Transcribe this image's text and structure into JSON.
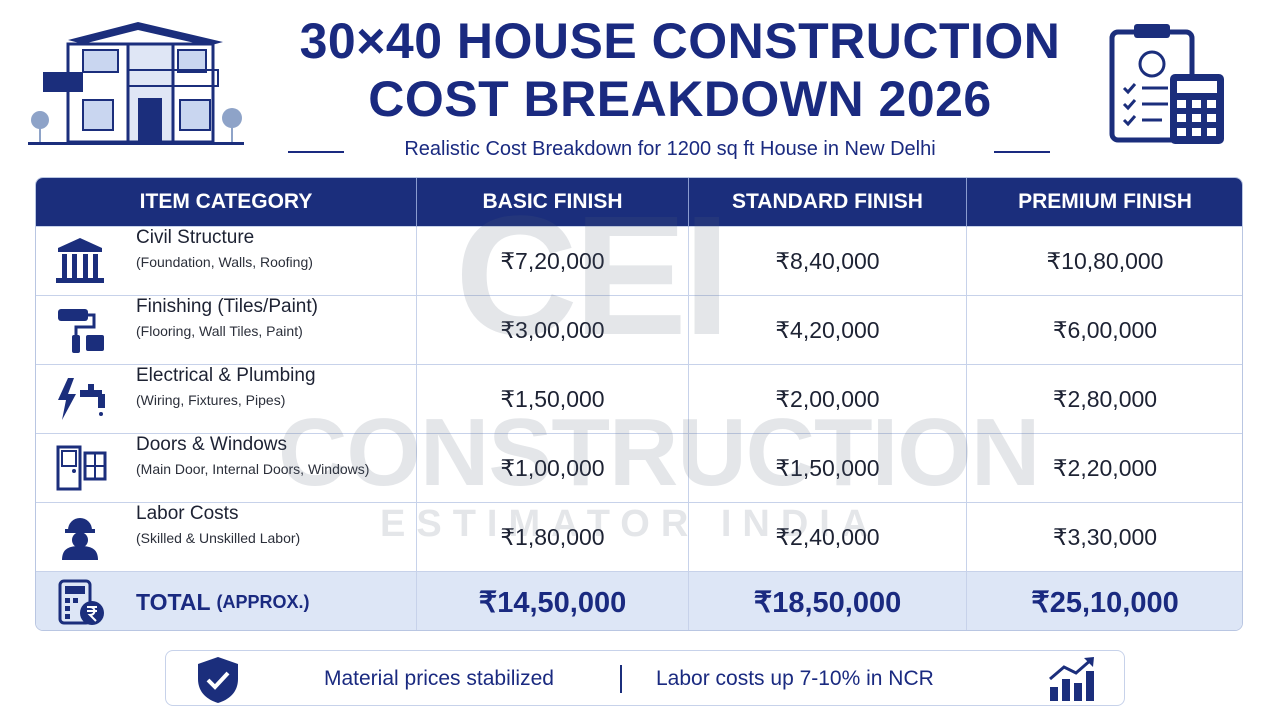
{
  "header": {
    "title": [
      "30×40 HOUSE CONSTRUCTION",
      "COST BREAKDOWN 2026"
    ],
    "subtitle": "Realistic Cost Breakdown for 1200 sq ft House in New Delhi"
  },
  "watermark": {
    "logo": "CEI",
    "line1": "CONSTRUCTION",
    "line2": "ESTIMATOR INDIA"
  },
  "table": {
    "columns": [
      "ITEM CATEGORY",
      "BASIC FINISH",
      "STANDARD FINISH",
      "PREMIUM FINISH"
    ],
    "rows": [
      {
        "name": "Civil Structure",
        "detail": "(Foundation, Walls, Roofing)",
        "values": [
          "₹7,20,000",
          "₹8,40,000",
          "₹10,80,000"
        ]
      },
      {
        "name": "Finishing (Tiles/Paint)",
        "detail": "(Flooring, Wall Tiles, Paint)",
        "values": [
          "₹3,00,000",
          "₹4,20,000",
          "₹6,00,000"
        ]
      },
      {
        "name": "Electrical & Plumbing",
        "detail": "(Wiring, Fixtures, Pipes)",
        "values": [
          "₹1,50,000",
          "₹2,00,000",
          "₹2,80,000"
        ]
      },
      {
        "name": "Doors & Windows",
        "detail": "(Main Door, Internal Doors, Windows)",
        "values": [
          "₹1,00,000",
          "₹1,50,000",
          "₹2,20,000"
        ]
      },
      {
        "name": "Labor Costs",
        "detail": "(Skilled & Unskilled Labor)",
        "values": [
          "₹1,80,000",
          "₹2,40,000",
          "₹3,30,000"
        ]
      }
    ],
    "total": {
      "label": "TOTAL",
      "qualifier": "(APPROX.)",
      "values": [
        "₹14,50,000",
        "₹18,50,000",
        "₹25,10,000"
      ]
    }
  },
  "footer": {
    "notes": [
      "Material prices stabilized",
      "Labor costs up 7-10% in NCR"
    ]
  }
}
